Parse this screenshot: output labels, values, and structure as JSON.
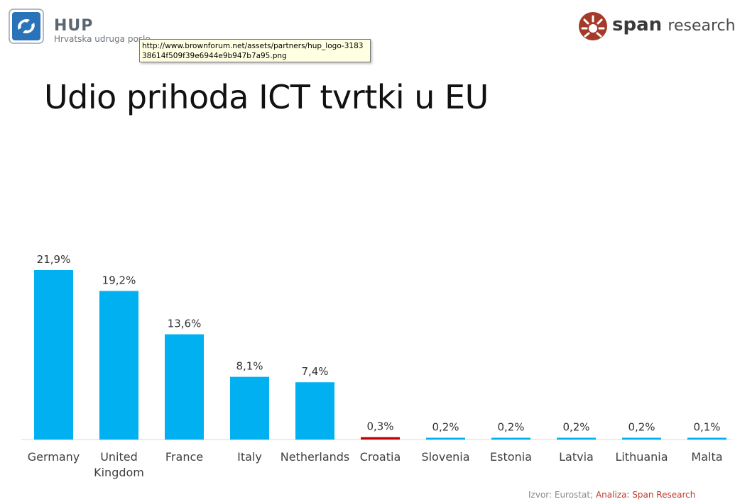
{
  "header": {
    "hup_title": "HUP",
    "hup_subtitle": "Hrvatska udruga poslo",
    "span_brand": "span",
    "span_suffix": "research"
  },
  "tooltip": {
    "text": "http://www.brownforum.net/assets/partners/hup_logo-318338614f509f39e6944e9b947b7a95.png"
  },
  "page_title": "Udio prihoda ICT tvrtki u EU",
  "source": {
    "prefix": "Izvor: Eurostat; ",
    "analysis": "Analiza: Span Research"
  },
  "colors": {
    "bar": "#00b0f0",
    "highlight": "#c00000",
    "brand_red": "#c0392b",
    "logo_blue": "#2a73b8"
  },
  "chart_data": {
    "type": "bar",
    "title": "",
    "xlabel": "",
    "ylabel": "",
    "categories": [
      "Germany",
      "United Kingdom",
      "France",
      "Italy",
      "Netherlands",
      "Croatia",
      "Slovenia",
      "Estonia",
      "Latvia",
      "Lithuania",
      "Malta"
    ],
    "values": [
      21.9,
      19.2,
      13.6,
      8.1,
      7.4,
      0.3,
      0.2,
      0.2,
      0.2,
      0.2,
      0.1
    ],
    "data_labels": [
      "21,9%",
      "19,2%",
      "13,6%",
      "8,1%",
      "7,4%",
      "0,3%",
      "0,2%",
      "0,2%",
      "0,2%",
      "0,2%",
      "0,1%"
    ],
    "highlight_category": "Croatia",
    "ylim": [
      0,
      21.9
    ],
    "grid": false,
    "legend": "none"
  }
}
